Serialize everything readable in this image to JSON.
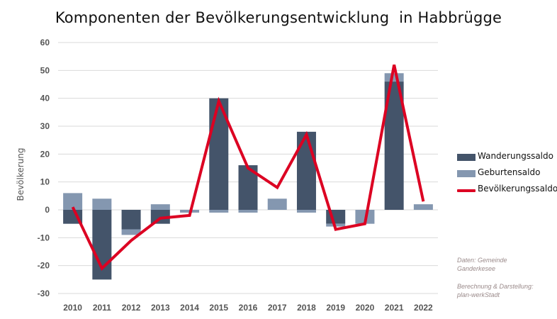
{
  "chart_data": {
    "type": "bar",
    "title": "Komponenten der Bevölkerungsentwicklung  in Habbrügge",
    "ylabel": "Bevölkerung",
    "xlabel": "",
    "ylim": [
      -30,
      60
    ],
    "yticks": [
      60,
      50,
      40,
      30,
      20,
      10,
      0,
      -10,
      -20,
      -30
    ],
    "grid": true,
    "legend_position": "right",
    "stacked": true,
    "categories": [
      "2010",
      "2011",
      "2012",
      "2013",
      "2014",
      "2015",
      "2016",
      "2017",
      "2018",
      "2019",
      "2020",
      "2021",
      "2022"
    ],
    "series": [
      {
        "name": "Wanderungssaldo",
        "kind": "bar",
        "color": "#44546a",
        "values": [
          -5,
          -25,
          -7,
          -5,
          0,
          40,
          16,
          0,
          28,
          -5,
          0,
          46,
          0
        ]
      },
      {
        "name": "Geburtensaldo",
        "kind": "bar",
        "color": "#8497b0",
        "values": [
          6,
          4,
          -2,
          2,
          -1,
          -1,
          -1,
          4,
          -1,
          -1,
          -5,
          3,
          2
        ]
      },
      {
        "name": "Bevölkerungssaldo",
        "kind": "line",
        "color": "#dc0022",
        "values": [
          1,
          -21,
          -11,
          -3,
          -2,
          39,
          15,
          8,
          27,
          -7,
          -5,
          52,
          3
        ]
      }
    ]
  },
  "notes": {
    "source": "Daten: Gemeinde\nGanderkesee",
    "credit": "Berechnung & Darstellung:\nplan-werkStadt"
  }
}
